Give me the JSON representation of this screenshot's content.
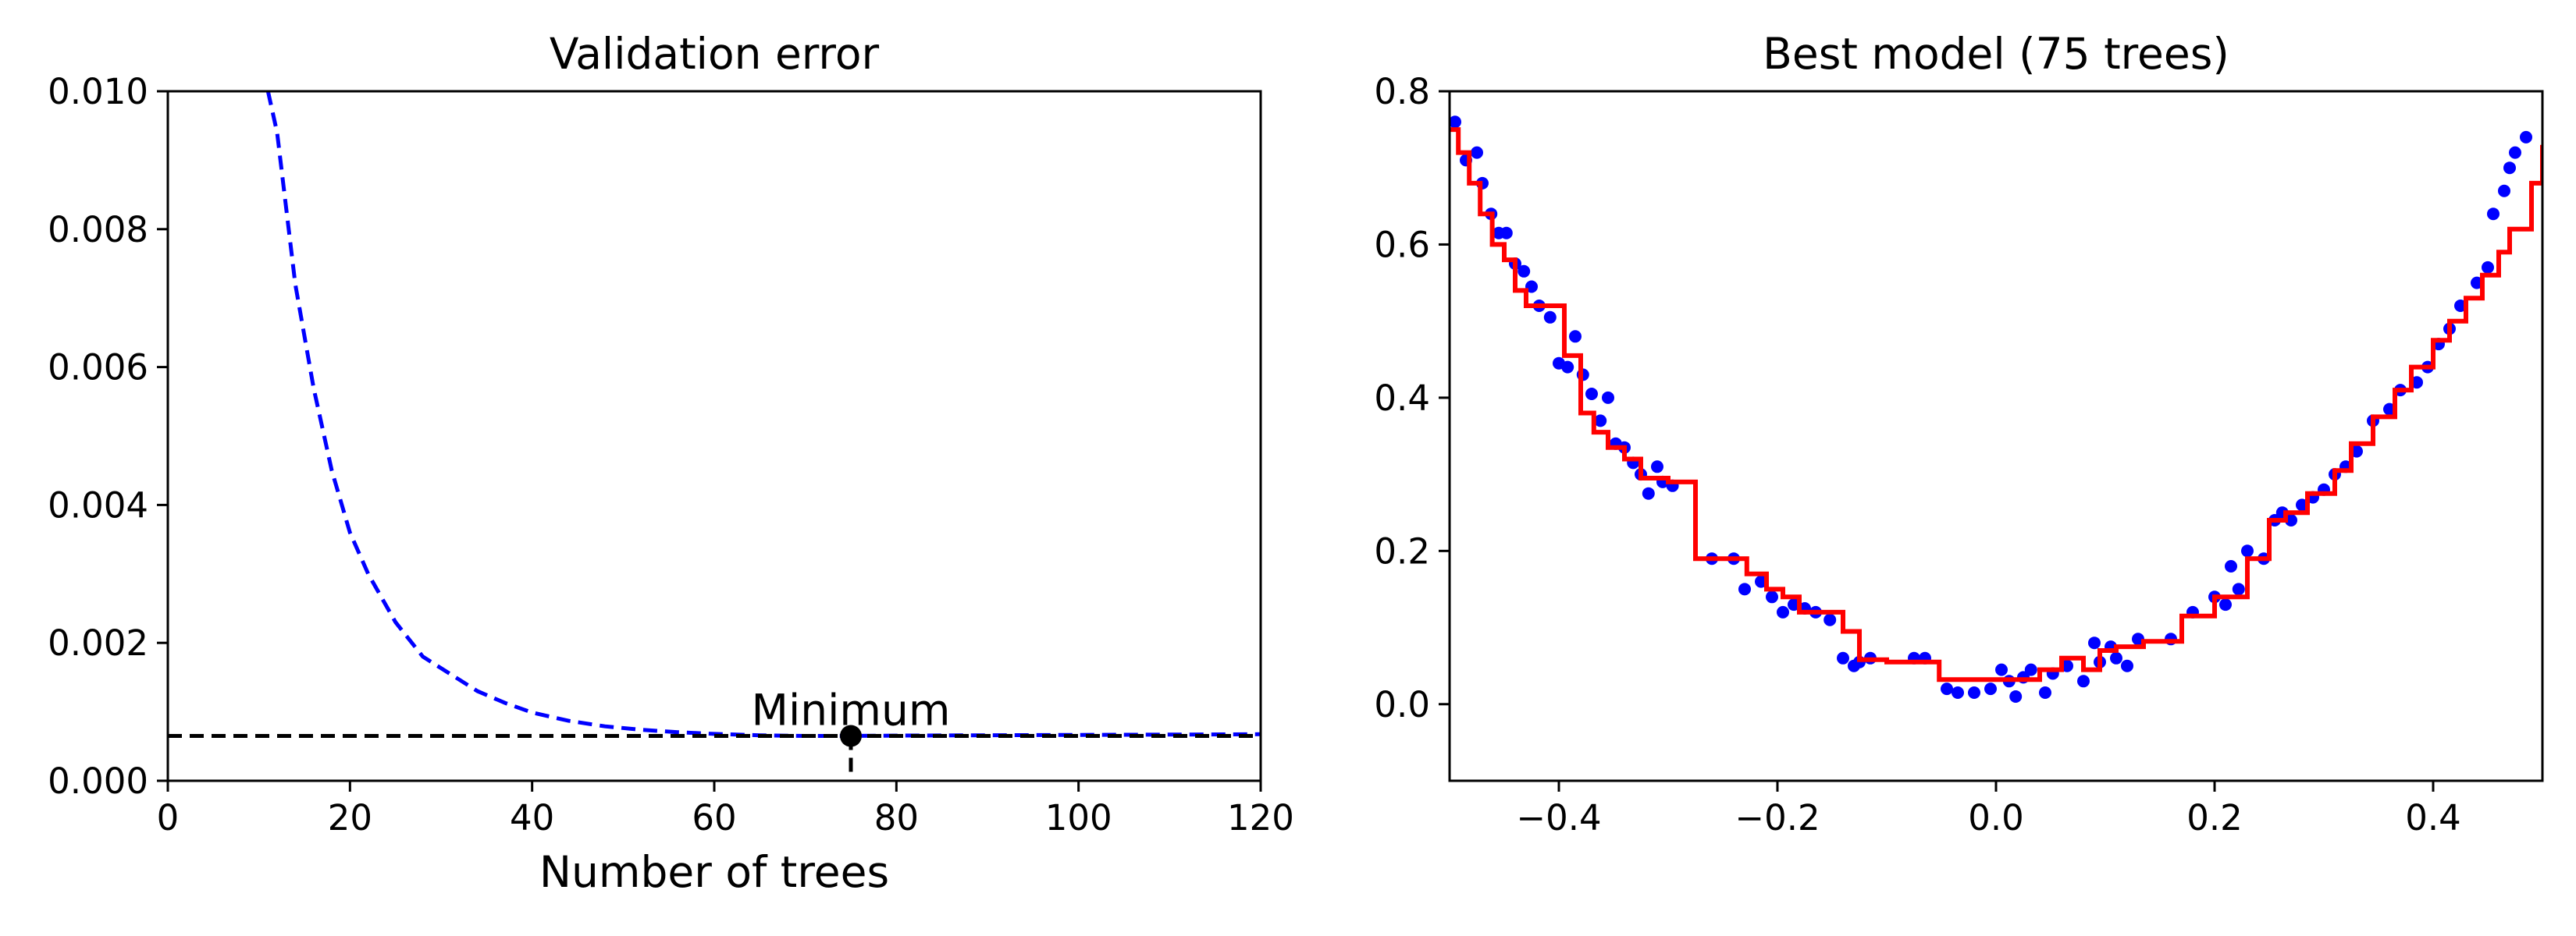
{
  "chart_data": [
    {
      "type": "line",
      "title": "Validation error",
      "xlabel": "Number of trees",
      "ylabel": "",
      "xlim": [
        0,
        120
      ],
      "ylim": [
        0,
        0.01
      ],
      "x_ticks": [
        "0",
        "20",
        "40",
        "60",
        "80",
        "100",
        "120"
      ],
      "y_ticks": [
        "0.000",
        "0.002",
        "0.004",
        "0.006",
        "0.008",
        "0.010"
      ],
      "grid": false,
      "series": [
        {
          "style": "dashed",
          "color": "#0000ff",
          "x": [
            11,
            12,
            14,
            16,
            18,
            20,
            22,
            25,
            28,
            31,
            34,
            37,
            40,
            44,
            48,
            52,
            56,
            60,
            65,
            70,
            75,
            80,
            90,
            100,
            110,
            120
          ],
          "y": [
            0.01,
            0.0094,
            0.0072,
            0.0057,
            0.0045,
            0.0036,
            0.003,
            0.0023,
            0.0018,
            0.00155,
            0.0013,
            0.00113,
            0.00099,
            0.00087,
            0.00079,
            0.00074,
            0.000705,
            0.00068,
            0.00066,
            0.00065,
            0.00065,
            0.000655,
            0.00066,
            0.000665,
            0.00067,
            0.000675
          ]
        }
      ],
      "minimum": {
        "x": 75,
        "y": 0.00065,
        "label": "Minimum"
      },
      "colors": {
        "line": "#0000ff",
        "marker": "#000000"
      }
    },
    {
      "type": "scatter",
      "title": "Best model (75 trees)",
      "xlabel": "",
      "ylabel": "",
      "xlim": [
        -0.5,
        0.5
      ],
      "ylim": [
        -0.1,
        0.8
      ],
      "x_ticks": [
        "−0.4",
        "−0.2",
        "0.0",
        "0.2",
        "0.4"
      ],
      "y_ticks": [
        "0.0",
        "0.2",
        "0.4",
        "0.6",
        "0.8"
      ],
      "grid": false,
      "points": {
        "color": "#0000ff",
        "x": [
          -0.495,
          -0.485,
          -0.475,
          -0.47,
          -0.462,
          -0.455,
          -0.448,
          -0.44,
          -0.432,
          -0.425,
          -0.418,
          -0.408,
          -0.4,
          -0.392,
          -0.385,
          -0.378,
          -0.37,
          -0.362,
          -0.355,
          -0.348,
          -0.34,
          -0.332,
          -0.325,
          -0.318,
          -0.31,
          -0.305,
          -0.296,
          -0.26,
          -0.24,
          -0.23,
          -0.215,
          -0.205,
          -0.195,
          -0.185,
          -0.175,
          -0.165,
          -0.152,
          -0.14,
          -0.13,
          -0.125,
          -0.115,
          -0.075,
          -0.065,
          -0.045,
          -0.035,
          -0.02,
          -0.005,
          0.005,
          0.012,
          0.018,
          0.025,
          0.032,
          0.045,
          0.052,
          0.065,
          0.08,
          0.09,
          0.095,
          0.105,
          0.11,
          0.12,
          0.13,
          0.16,
          0.18,
          0.2,
          0.21,
          0.215,
          0.222,
          0.23,
          0.245,
          0.255,
          0.262,
          0.27,
          0.28,
          0.29,
          0.3,
          0.31,
          0.32,
          0.33,
          0.345,
          0.36,
          0.37,
          0.385,
          0.395,
          0.405,
          0.415,
          0.425,
          0.44,
          0.45,
          0.455,
          0.465,
          0.47,
          0.475,
          0.485
        ],
        "y": [
          0.76,
          0.71,
          0.72,
          0.68,
          0.64,
          0.615,
          0.615,
          0.575,
          0.565,
          0.545,
          0.52,
          0.505,
          0.445,
          0.44,
          0.48,
          0.43,
          0.405,
          0.37,
          0.4,
          0.34,
          0.335,
          0.315,
          0.3,
          0.275,
          0.31,
          0.29,
          0.285,
          0.19,
          0.19,
          0.15,
          0.16,
          0.14,
          0.12,
          0.13,
          0.125,
          0.12,
          0.11,
          0.06,
          0.05,
          0.055,
          0.06,
          0.06,
          0.06,
          0.02,
          0.015,
          0.015,
          0.02,
          0.045,
          0.03,
          0.01,
          0.035,
          0.045,
          0.015,
          0.04,
          0.05,
          0.03,
          0.08,
          0.055,
          0.075,
          0.06,
          0.05,
          0.085,
          0.085,
          0.12,
          0.14,
          0.13,
          0.18,
          0.15,
          0.2,
          0.19,
          0.24,
          0.25,
          0.24,
          0.26,
          0.27,
          0.28,
          0.3,
          0.31,
          0.33,
          0.37,
          0.385,
          0.41,
          0.42,
          0.44,
          0.47,
          0.49,
          0.52,
          0.55,
          0.57,
          0.64,
          0.67,
          0.7,
          0.72,
          0.74
        ]
      },
      "prediction": {
        "color": "#ff0000",
        "x": [
          -0.5,
          -0.492,
          -0.482,
          -0.472,
          -0.461,
          -0.45,
          -0.44,
          -0.43,
          -0.415,
          -0.395,
          -0.38,
          -0.368,
          -0.355,
          -0.34,
          -0.325,
          -0.3,
          -0.275,
          -0.228,
          -0.21,
          -0.195,
          -0.18,
          -0.16,
          -0.14,
          -0.125,
          -0.1,
          -0.08,
          -0.052,
          0.0,
          0.04,
          0.06,
          0.08,
          0.095,
          0.11,
          0.135,
          0.17,
          0.2,
          0.23,
          0.25,
          0.265,
          0.285,
          0.31,
          0.325,
          0.345,
          0.365,
          0.38,
          0.4,
          0.415,
          0.43,
          0.445,
          0.46,
          0.47,
          0.49,
          0.5
        ],
        "y": [
          0.75,
          0.72,
          0.68,
          0.64,
          0.6,
          0.58,
          0.54,
          0.52,
          0.52,
          0.455,
          0.38,
          0.355,
          0.335,
          0.32,
          0.295,
          0.29,
          0.19,
          0.17,
          0.15,
          0.14,
          0.12,
          0.12,
          0.095,
          0.058,
          0.055,
          0.055,
          0.032,
          0.032,
          0.045,
          0.06,
          0.045,
          0.07,
          0.075,
          0.082,
          0.115,
          0.14,
          0.19,
          0.24,
          0.25,
          0.275,
          0.305,
          0.34,
          0.375,
          0.41,
          0.44,
          0.475,
          0.5,
          0.53,
          0.56,
          0.59,
          0.62,
          0.68,
          0.73
        ]
      },
      "colors": {
        "points": "#0000ff",
        "prediction": "#ff0000"
      }
    }
  ]
}
